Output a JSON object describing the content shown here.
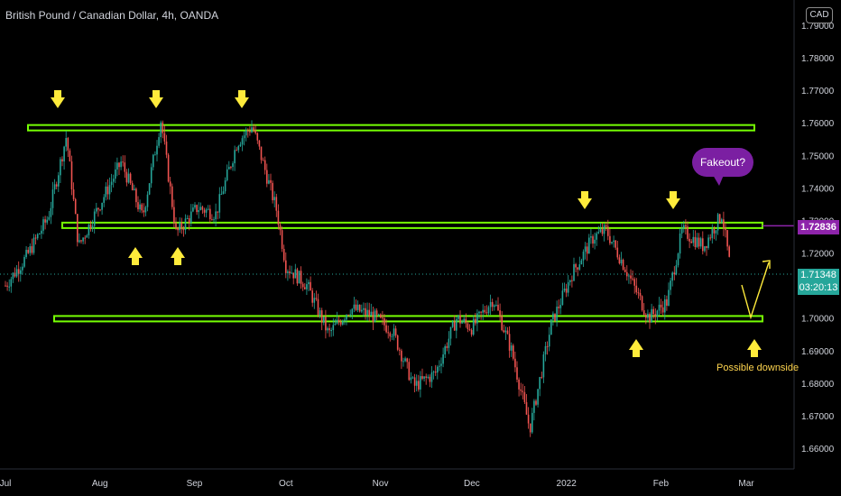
{
  "header": {
    "title": "British Pound / Canadian Dollar, 4h, OANDA",
    "currency": "CAD"
  },
  "price_tags": {
    "level": "1.72836",
    "last": "1.71348",
    "countdown": "03:20:13"
  },
  "annotations": {
    "callout": "Fakeout?",
    "note": "Possible downside"
  },
  "colors": {
    "background": "#000000",
    "up": "#26a69a",
    "down": "#ef5350",
    "zone": "#76ff03",
    "arrow": "#ffeb3b",
    "callout": "#7b1fa2",
    "tag": "#8e24aa"
  },
  "chart_data": {
    "type": "candlestick",
    "title": "British Pound / Canadian Dollar, 4h, OANDA",
    "ylim": [
      1.655,
      1.795
    ],
    "y_ticks": [
      "1.79000",
      "1.78000",
      "1.77000",
      "1.76000",
      "1.75000",
      "1.74000",
      "1.73000",
      "1.72000",
      "1.71000",
      "1.70000",
      "1.69000",
      "1.68000",
      "1.67000",
      "1.66000"
    ],
    "x_ticks": [
      "Jul",
      "Aug",
      "Sep",
      "Oct",
      "Nov",
      "Dec",
      "2022",
      "Feb",
      "Mar"
    ],
    "series": [
      {
        "values": [
          [
            "2021-07-01",
            1.71
          ],
          [
            "2021-07-08",
            1.719
          ],
          [
            "2021-07-15",
            1.731
          ],
          [
            "2021-07-21",
            1.756
          ],
          [
            "2021-07-25",
            1.722
          ],
          [
            "2021-08-01",
            1.735
          ],
          [
            "2021-08-08",
            1.748
          ],
          [
            "2021-08-15",
            1.731
          ],
          [
            "2021-08-21",
            1.761
          ],
          [
            "2021-08-26",
            1.726
          ],
          [
            "2021-09-02",
            1.734
          ],
          [
            "2021-09-08",
            1.732
          ],
          [
            "2021-09-15",
            1.754
          ],
          [
            "2021-09-20",
            1.759
          ],
          [
            "2021-09-28",
            1.733
          ],
          [
            "2021-10-01",
            1.716
          ],
          [
            "2021-10-08",
            1.71
          ],
          [
            "2021-10-15",
            1.695
          ],
          [
            "2021-10-22",
            1.703
          ],
          [
            "2021-10-29",
            1.701
          ],
          [
            "2021-11-05",
            1.696
          ],
          [
            "2021-11-12",
            1.679
          ],
          [
            "2021-11-19",
            1.683
          ],
          [
            "2021-11-26",
            1.7
          ],
          [
            "2021-12-01",
            1.697
          ],
          [
            "2021-12-08",
            1.706
          ],
          [
            "2021-12-14",
            1.69
          ],
          [
            "2021-12-20",
            1.666
          ],
          [
            "2021-12-27",
            1.698
          ],
          [
            "2022-01-03",
            1.714
          ],
          [
            "2022-01-10",
            1.725
          ],
          [
            "2022-01-14",
            1.727
          ],
          [
            "2022-01-20",
            1.716
          ],
          [
            "2022-01-28",
            1.7
          ],
          [
            "2022-02-03",
            1.705
          ],
          [
            "2022-02-08",
            1.727
          ],
          [
            "2022-02-15",
            1.722
          ],
          [
            "2022-02-21",
            1.732
          ],
          [
            "2022-02-24",
            1.714
          ]
        ]
      }
    ],
    "horizontal_levels": [
      1.7585,
      1.7285,
      1.6998
    ],
    "level_lines": [
      "1.72836",
      "1.71348"
    ]
  }
}
